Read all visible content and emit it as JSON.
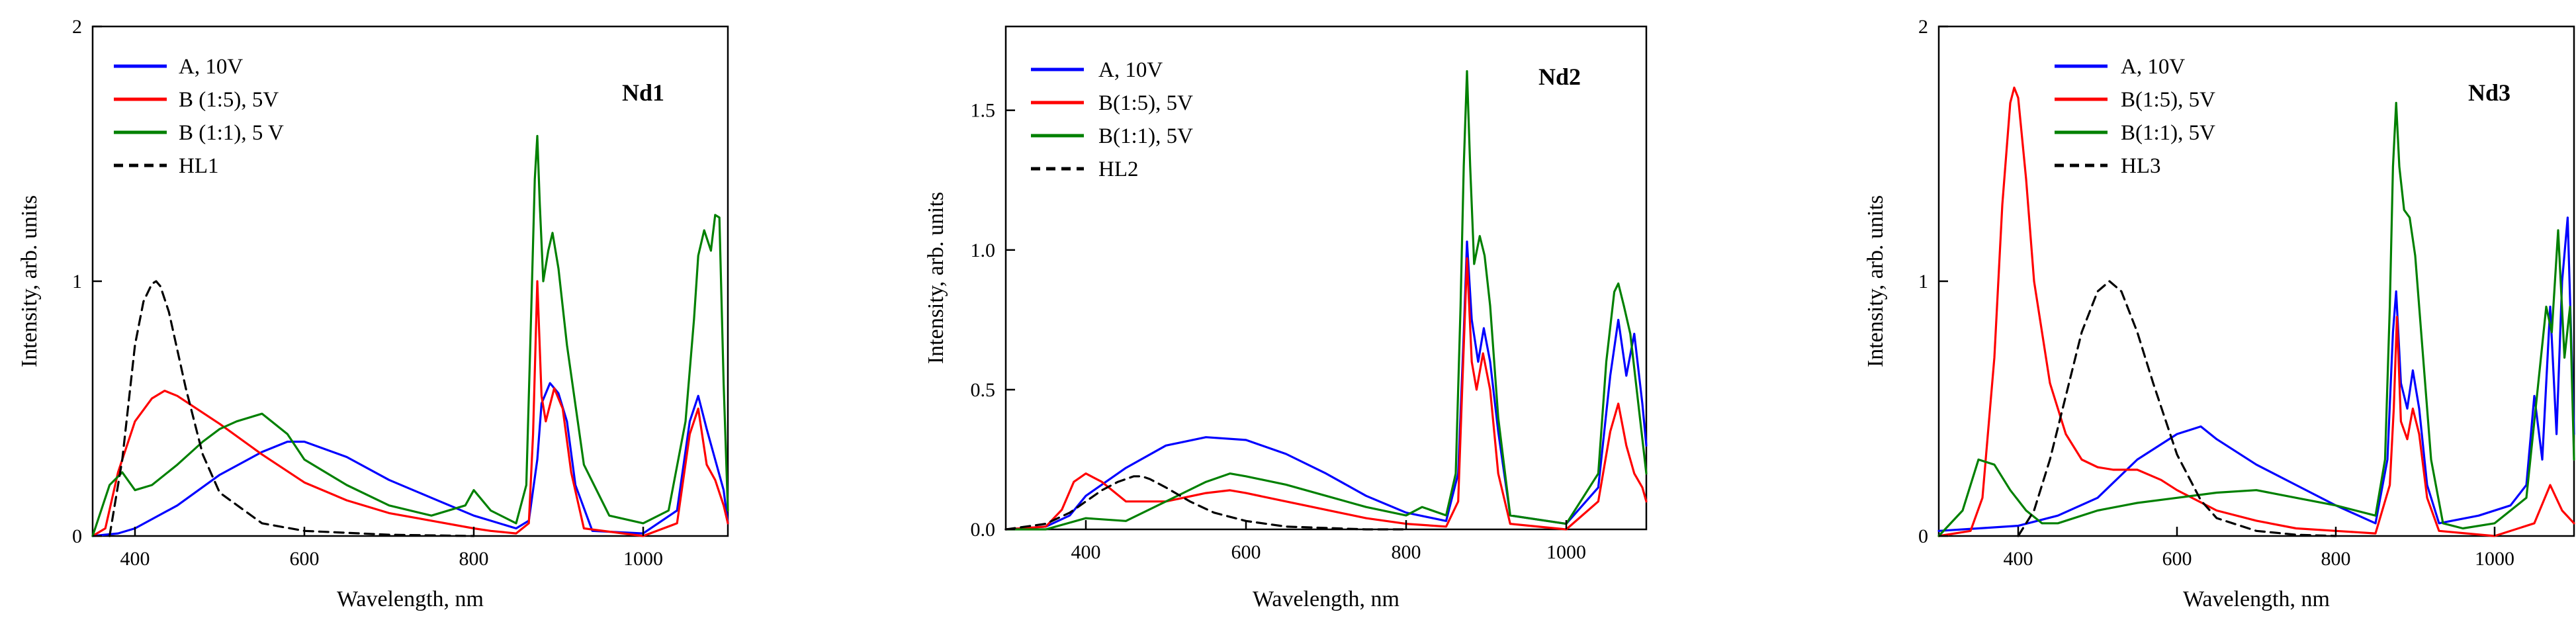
{
  "chart_data": [
    {
      "type": "line",
      "panel_label": "Nd1",
      "xlabel": "Wavelength, nm",
      "ylabel": "Intensity, arb. units",
      "xlim": [
        350,
        1100
      ],
      "ylim": [
        0,
        2
      ],
      "xticks": [
        400,
        600,
        800,
        1000
      ],
      "yticks": [
        0,
        1,
        2
      ],
      "xtick_labels": [
        "400",
        "600",
        "800",
        "1000"
      ],
      "ytick_labels": [
        "0",
        "1",
        "2"
      ],
      "legend_position": "top-left",
      "series": [
        {
          "name": "A, 10V",
          "color": "#0000ff",
          "dash": "solid",
          "x": [
            350,
            380,
            400,
            450,
            500,
            550,
            580,
            600,
            650,
            700,
            750,
            800,
            820,
            850,
            865,
            875,
            880,
            890,
            895,
            900,
            910,
            920,
            940,
            1000,
            1040,
            1055,
            1065,
            1075,
            1085,
            1095,
            1100
          ],
          "y": [
            0,
            0.01,
            0.03,
            0.12,
            0.24,
            0.33,
            0.37,
            0.37,
            0.31,
            0.22,
            0.15,
            0.08,
            0.06,
            0.03,
            0.06,
            0.3,
            0.52,
            0.6,
            0.58,
            0.56,
            0.45,
            0.2,
            0.02,
            0.01,
            0.1,
            0.45,
            0.55,
            0.42,
            0.3,
            0.18,
            0.05
          ]
        },
        {
          "name": "B (1:5), 5V",
          "color": "#ff0000",
          "dash": "solid",
          "x": [
            350,
            365,
            380,
            400,
            420,
            435,
            450,
            500,
            550,
            600,
            650,
            700,
            750,
            800,
            820,
            850,
            865,
            870,
            875,
            880,
            885,
            895,
            905,
            915,
            930,
            1000,
            1040,
            1055,
            1065,
            1075,
            1085,
            1095,
            1100
          ],
          "y": [
            0,
            0.03,
            0.25,
            0.45,
            0.54,
            0.57,
            0.55,
            0.44,
            0.32,
            0.21,
            0.14,
            0.09,
            0.06,
            0.03,
            0.02,
            0.01,
            0.05,
            0.4,
            1.0,
            0.55,
            0.45,
            0.58,
            0.5,
            0.25,
            0.03,
            0.0,
            0.05,
            0.4,
            0.5,
            0.28,
            0.22,
            0.12,
            0.05
          ]
        },
        {
          "name": "B (1:1), 5 V",
          "color": "#008000",
          "dash": "solid",
          "x": [
            350,
            370,
            385,
            400,
            420,
            450,
            480,
            500,
            520,
            550,
            580,
            600,
            650,
            700,
            750,
            790,
            800,
            820,
            850,
            862,
            868,
            872,
            875,
            878,
            882,
            888,
            893,
            900,
            910,
            930,
            960,
            1000,
            1030,
            1050,
            1060,
            1065,
            1072,
            1080,
            1085,
            1090,
            1095,
            1100
          ],
          "y": [
            0,
            0.2,
            0.25,
            0.18,
            0.2,
            0.28,
            0.37,
            0.42,
            0.45,
            0.48,
            0.4,
            0.3,
            0.2,
            0.12,
            0.08,
            0.12,
            0.18,
            0.1,
            0.05,
            0.2,
            0.9,
            1.4,
            1.57,
            1.3,
            1.0,
            1.12,
            1.19,
            1.05,
            0.75,
            0.28,
            0.08,
            0.05,
            0.1,
            0.45,
            0.85,
            1.1,
            1.2,
            1.12,
            1.26,
            1.25,
            0.6,
            0.1
          ]
        },
        {
          "name": "HL1",
          "color": "#000000",
          "dash": "dashed",
          "x": [
            370,
            385,
            400,
            410,
            420,
            425,
            430,
            440,
            460,
            480,
            500,
            550,
            600,
            700,
            800
          ],
          "y": [
            0.0,
            0.3,
            0.75,
            0.92,
            0.99,
            1.0,
            0.98,
            0.88,
            0.58,
            0.32,
            0.17,
            0.05,
            0.02,
            0.005,
            0.0
          ]
        }
      ]
    },
    {
      "type": "line",
      "panel_label": "Nd2",
      "xlabel": "Wavelength, nm",
      "ylabel": "Intensity, arb. units",
      "xlim": [
        300,
        1100
      ],
      "ylim": [
        0,
        1.8
      ],
      "xticks": [
        400,
        600,
        800,
        1000
      ],
      "yticks": [
        0,
        0.5,
        1.0,
        1.5
      ],
      "xtick_labels": [
        "400",
        "600",
        "800",
        "1000"
      ],
      "ytick_labels": [
        "0.0",
        "0.5",
        "1.0",
        "1.5"
      ],
      "legend_position": "top-left",
      "series": [
        {
          "name": "A, 10V",
          "color": "#0000ff",
          "dash": "solid",
          "x": [
            300,
            350,
            380,
            400,
            450,
            500,
            550,
            600,
            650,
            700,
            750,
            800,
            850,
            865,
            872,
            876,
            882,
            890,
            897,
            905,
            915,
            930,
            1000,
            1040,
            1055,
            1065,
            1075,
            1085,
            1095,
            1100
          ],
          "y": [
            0,
            0.01,
            0.05,
            0.12,
            0.22,
            0.3,
            0.33,
            0.32,
            0.27,
            0.2,
            0.12,
            0.06,
            0.03,
            0.2,
            0.7,
            1.03,
            0.75,
            0.6,
            0.72,
            0.6,
            0.35,
            0.05,
            0.02,
            0.15,
            0.55,
            0.75,
            0.55,
            0.7,
            0.45,
            0.3
          ]
        },
        {
          "name": "B(1:5), 5V",
          "color": "#ff0000",
          "dash": "solid",
          "x": [
            300,
            350,
            370,
            385,
            400,
            420,
            450,
            500,
            550,
            580,
            600,
            650,
            700,
            750,
            800,
            850,
            865,
            870,
            876,
            882,
            888,
            896,
            905,
            915,
            930,
            1000,
            1040,
            1055,
            1065,
            1075,
            1085,
            1095,
            1100
          ],
          "y": [
            0,
            0.01,
            0.07,
            0.17,
            0.2,
            0.17,
            0.1,
            0.1,
            0.13,
            0.14,
            0.13,
            0.1,
            0.07,
            0.04,
            0.02,
            0.01,
            0.1,
            0.5,
            0.97,
            0.6,
            0.5,
            0.63,
            0.5,
            0.2,
            0.02,
            0.0,
            0.1,
            0.35,
            0.45,
            0.3,
            0.2,
            0.15,
            0.1
          ]
        },
        {
          "name": "B(1:1), 5V",
          "color": "#008000",
          "dash": "solid",
          "x": [
            300,
            350,
            400,
            450,
            500,
            550,
            580,
            600,
            650,
            700,
            750,
            800,
            820,
            850,
            862,
            868,
            872,
            876,
            880,
            885,
            892,
            898,
            905,
            915,
            930,
            1000,
            1040,
            1050,
            1060,
            1065,
            1072,
            1080,
            1090,
            1100
          ],
          "y": [
            0,
            0.0,
            0.04,
            0.03,
            0.1,
            0.17,
            0.2,
            0.19,
            0.16,
            0.12,
            0.08,
            0.05,
            0.08,
            0.05,
            0.2,
            0.8,
            1.3,
            1.64,
            1.3,
            0.95,
            1.05,
            0.98,
            0.8,
            0.4,
            0.05,
            0.02,
            0.2,
            0.6,
            0.85,
            0.88,
            0.8,
            0.7,
            0.45,
            0.2
          ]
        },
        {
          "name": "HL2",
          "color": "#000000",
          "dash": "dashed",
          "x": [
            300,
            350,
            380,
            400,
            420,
            440,
            460,
            470,
            480,
            500,
            530,
            560,
            600,
            650,
            700,
            750,
            800
          ],
          "y": [
            0.0,
            0.02,
            0.06,
            0.1,
            0.14,
            0.17,
            0.19,
            0.19,
            0.18,
            0.15,
            0.1,
            0.06,
            0.03,
            0.01,
            0.005,
            0.0,
            0.0
          ]
        }
      ]
    },
    {
      "type": "line",
      "panel_label": "Nd3",
      "xlabel": "Wavelength, nm",
      "ylabel": "Intensity, arb. units",
      "xlim": [
        300,
        1100
      ],
      "ylim": [
        0,
        2
      ],
      "xticks": [
        400,
        600,
        800,
        1000
      ],
      "yticks": [
        0,
        1,
        2
      ],
      "xtick_labels": [
        "400",
        "600",
        "800",
        "1000"
      ],
      "ytick_labels": [
        "0",
        "1",
        "2"
      ],
      "legend_position": "top-right",
      "series": [
        {
          "name": "A, 10V",
          "color": "#0000ff",
          "dash": "solid",
          "x": [
            300,
            350,
            400,
            450,
            500,
            550,
            600,
            630,
            650,
            700,
            750,
            800,
            850,
            865,
            872,
            876,
            882,
            890,
            897,
            905,
            915,
            930,
            980,
            1020,
            1040,
            1050,
            1060,
            1070,
            1078,
            1085,
            1092,
            1100
          ],
          "y": [
            0.02,
            0.03,
            0.04,
            0.08,
            0.15,
            0.3,
            0.4,
            0.43,
            0.38,
            0.28,
            0.2,
            0.12,
            0.05,
            0.3,
            0.8,
            0.96,
            0.6,
            0.5,
            0.65,
            0.5,
            0.2,
            0.05,
            0.08,
            0.12,
            0.2,
            0.55,
            0.3,
            0.9,
            0.4,
            1.0,
            1.25,
            0.4
          ]
        },
        {
          "name": "B(1:5), 5V",
          "color": "#ff0000",
          "dash": "solid",
          "x": [
            300,
            340,
            355,
            370,
            380,
            390,
            395,
            400,
            410,
            420,
            440,
            460,
            480,
            500,
            520,
            550,
            580,
            600,
            650,
            700,
            750,
            800,
            850,
            868,
            873,
            877,
            882,
            890,
            897,
            905,
            915,
            930,
            1000,
            1050,
            1070,
            1085,
            1100
          ],
          "y": [
            0,
            0.02,
            0.15,
            0.7,
            1.3,
            1.7,
            1.76,
            1.72,
            1.4,
            1.0,
            0.6,
            0.4,
            0.3,
            0.27,
            0.26,
            0.26,
            0.22,
            0.18,
            0.1,
            0.06,
            0.03,
            0.02,
            0.01,
            0.2,
            0.5,
            0.86,
            0.45,
            0.38,
            0.5,
            0.4,
            0.15,
            0.02,
            0.0,
            0.05,
            0.2,
            0.1,
            0.05
          ]
        },
        {
          "name": "B(1:1), 5V",
          "color": "#008000",
          "dash": "solid",
          "x": [
            300,
            330,
            350,
            370,
            390,
            410,
            430,
            450,
            500,
            550,
            600,
            650,
            700,
            750,
            800,
            850,
            862,
            868,
            872,
            876,
            880,
            886,
            893,
            900,
            910,
            920,
            935,
            960,
            1000,
            1040,
            1055,
            1065,
            1072,
            1080,
            1088,
            1095,
            1100
          ],
          "y": [
            0,
            0.1,
            0.3,
            0.28,
            0.18,
            0.1,
            0.05,
            0.05,
            0.1,
            0.13,
            0.15,
            0.17,
            0.18,
            0.15,
            0.12,
            0.08,
            0.3,
            0.9,
            1.45,
            1.7,
            1.45,
            1.28,
            1.25,
            1.1,
            0.7,
            0.3,
            0.05,
            0.03,
            0.05,
            0.15,
            0.6,
            0.9,
            0.8,
            1.2,
            0.7,
            0.9,
            0.3
          ]
        },
        {
          "name": "HL3",
          "color": "#000000",
          "dash": "dashed",
          "x": [
            400,
            420,
            440,
            460,
            480,
            500,
            515,
            530,
            550,
            570,
            600,
            630,
            650,
            700,
            750,
            800
          ],
          "y": [
            0.0,
            0.1,
            0.3,
            0.55,
            0.8,
            0.96,
            1.0,
            0.96,
            0.8,
            0.6,
            0.32,
            0.14,
            0.07,
            0.02,
            0.005,
            0.0
          ]
        }
      ]
    }
  ]
}
